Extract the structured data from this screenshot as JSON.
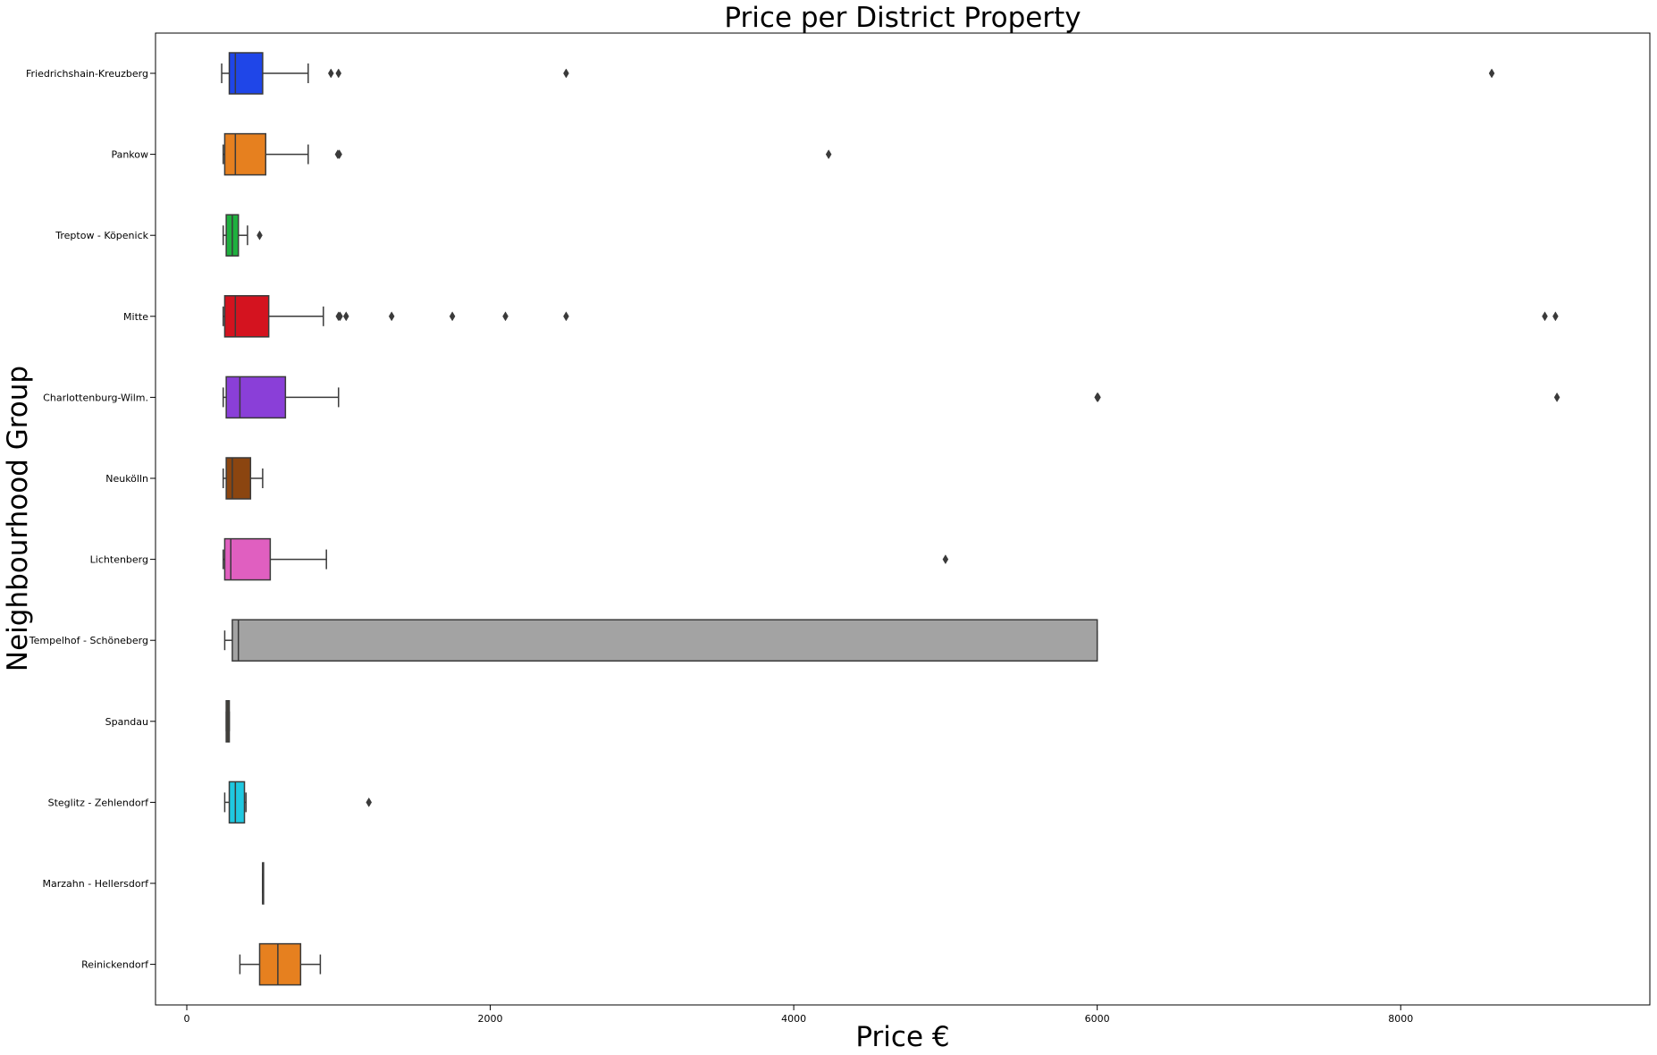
{
  "chart_data": {
    "type": "boxplot",
    "orientation": "horizontal",
    "title": "Price per District Property",
    "xlabel": "Price €",
    "ylabel": "Neighbourhood Group",
    "xlim": [
      -200,
      9500
    ],
    "xticks": [
      0,
      2000,
      4000,
      6000,
      8000
    ],
    "grid": false,
    "groups": [
      {
        "name": "Friedrichshain-Kreuzberg",
        "color": "#1f46e8",
        "whisker_low": 230,
        "q1": 280,
        "median": 320,
        "q3": 500,
        "whisker_high": 800,
        "outliers": [
          950,
          1000,
          2500,
          8600
        ]
      },
      {
        "name": "Pankow",
        "color": "#e6801f",
        "whisker_low": 240,
        "q1": 250,
        "median": 320,
        "q3": 520,
        "whisker_high": 800,
        "outliers": [
          995,
          1005,
          4230
        ]
      },
      {
        "name": "Treptow - Köpenick",
        "color": "#1fb03f",
        "whisker_low": 240,
        "q1": 260,
        "median": 300,
        "q3": 340,
        "whisker_high": 400,
        "outliers": [
          480
        ]
      },
      {
        "name": "Mitte",
        "color": "#d4131f",
        "whisker_low": 240,
        "q1": 250,
        "median": 320,
        "q3": 540,
        "whisker_high": 900,
        "outliers": [
          1000,
          1010,
          1050,
          1350,
          1750,
          2100,
          2500,
          8950,
          9020
        ]
      },
      {
        "name": "Charlottenburg-Wilm.",
        "color": "#8a3fd8",
        "whisker_low": 240,
        "q1": 260,
        "median": 350,
        "q3": 650,
        "whisker_high": 1000,
        "outliers": [
          6000,
          6005,
          9030
        ]
      },
      {
        "name": "Neukölln",
        "color": "#8b4510",
        "whisker_low": 240,
        "q1": 260,
        "median": 300,
        "q3": 420,
        "whisker_high": 500,
        "outliers": []
      },
      {
        "name": "Lichtenberg",
        "color": "#e05fc0",
        "whisker_low": 240,
        "q1": 250,
        "median": 290,
        "q3": 550,
        "whisker_high": 920,
        "outliers": [
          5000
        ]
      },
      {
        "name": "Tempelhof - Schöneberg",
        "color": "#a3a3a3",
        "whisker_low": 250,
        "q1": 300,
        "median": 340,
        "q3": 6000,
        "whisker_high": 6000,
        "outliers": []
      },
      {
        "name": "Spandau",
        "color": "#7a6a4a",
        "whisker_low": 260,
        "q1": 260,
        "median": 270,
        "q3": 280,
        "whisker_high": 280,
        "outliers": []
      },
      {
        "name": "Steglitz - Zehlendorf",
        "color": "#1fc8e0",
        "whisker_low": 250,
        "q1": 280,
        "median": 320,
        "q3": 380,
        "whisker_high": 390,
        "outliers": [
          1200
        ]
      },
      {
        "name": "Marzahn - Hellersdorf",
        "color": "#7a6a4a",
        "whisker_low": 500,
        "q1": 500,
        "median": 500,
        "q3": 500,
        "whisker_high": 500,
        "outliers": []
      },
      {
        "name": "Reinickendorf",
        "color": "#e6801f",
        "whisker_low": 350,
        "q1": 480,
        "median": 600,
        "q3": 750,
        "whisker_high": 880,
        "outliers": []
      }
    ]
  }
}
